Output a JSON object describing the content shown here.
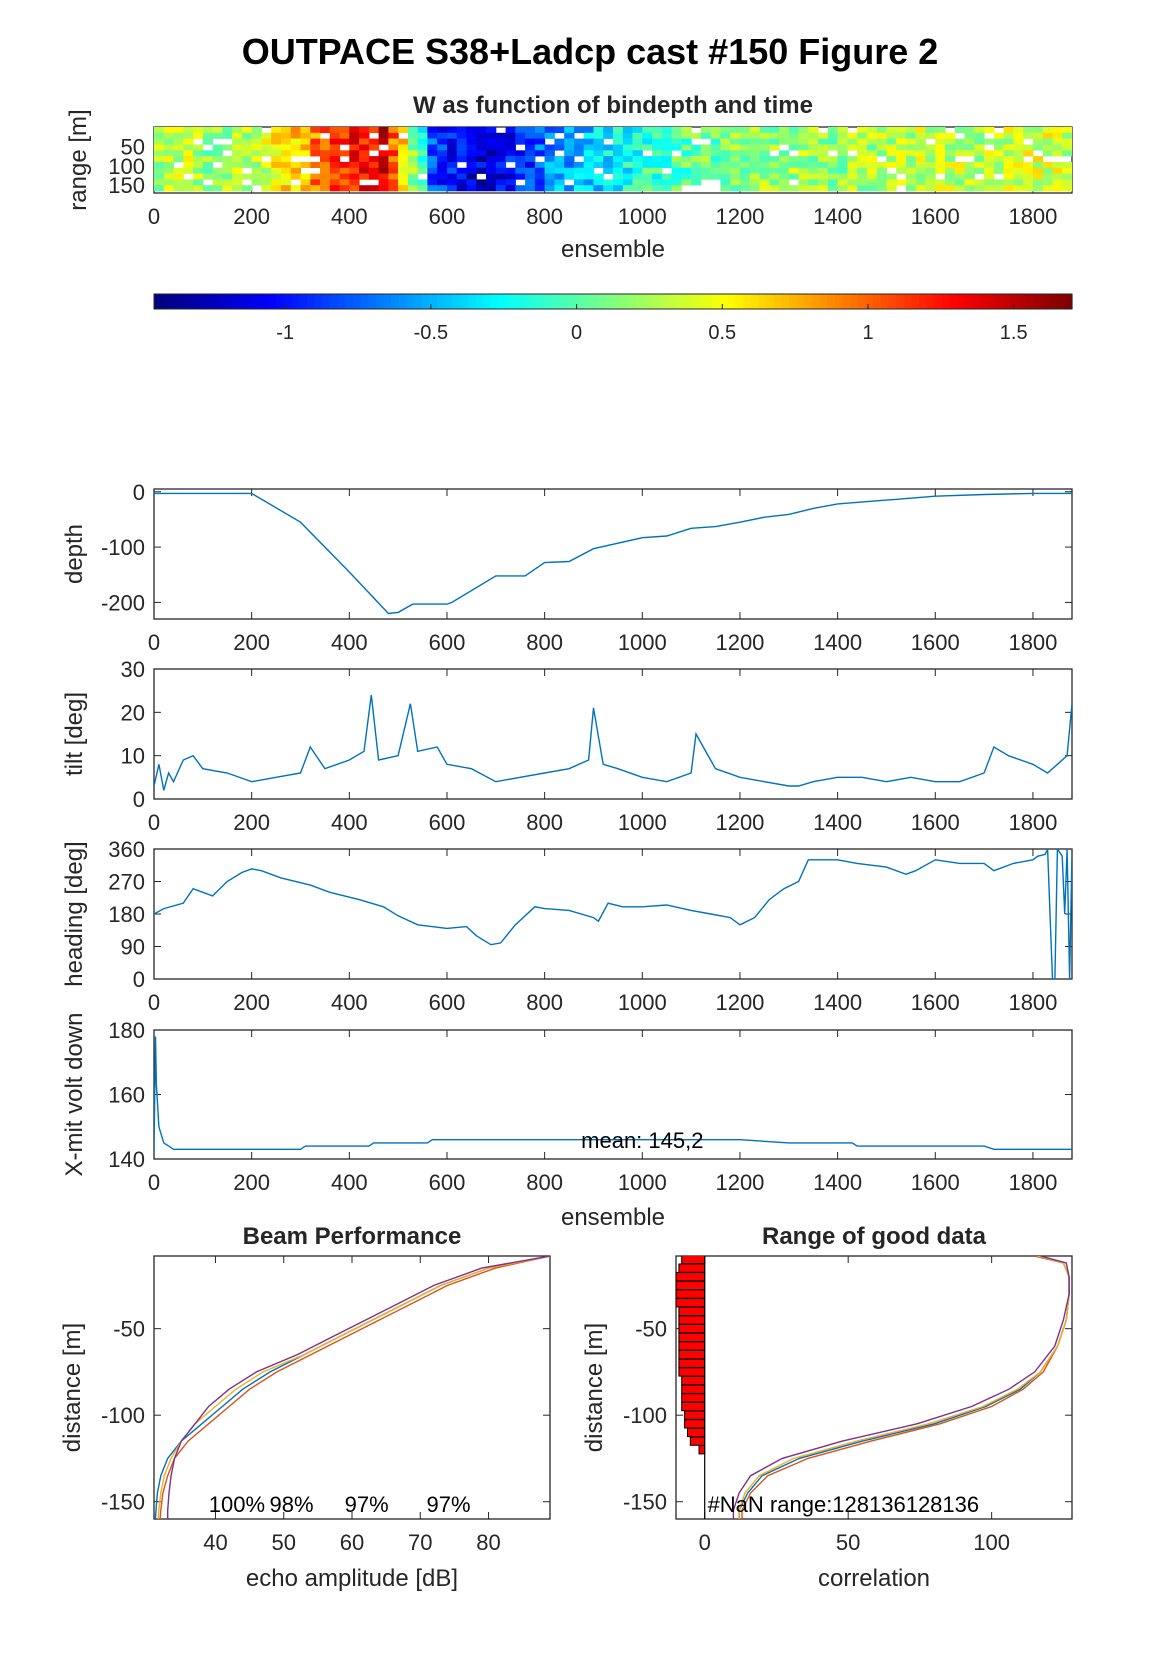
{
  "figure": {
    "title": "OUTPACE S38+Ladcp cast #150 Figure 2"
  },
  "colors": {
    "line": "#0072BD",
    "beam_series": [
      "#0072BD",
      "#D95319",
      "#EDB120",
      "#7E2F8E"
    ],
    "nan_bar": "#FF0000",
    "axis": "#262626"
  },
  "chart_data": [
    {
      "id": "w_image",
      "type": "heatmap",
      "title": "W as function of bindepth and time",
      "xlabel": "ensemble",
      "ylabel": "range [m]",
      "xlim": [
        0,
        1880
      ],
      "ylim": [
        0,
        170
      ],
      "y_reversed": true,
      "xticks": [
        0,
        200,
        400,
        600,
        800,
        1000,
        1200,
        1400,
        1600,
        1800
      ],
      "yticks": [
        50,
        100,
        150
      ],
      "colormap": "jet",
      "clim": [
        -1.45,
        1.7
      ],
      "colorbar_ticks": [
        -1,
        -0.5,
        0,
        0.5,
        1,
        1.5
      ],
      "colorbar_ticklabels": [
        "-1",
        "-0.5",
        "0",
        "0.5",
        "1",
        "1.5"
      ],
      "column_width_ensembles": 20,
      "bin_edges": [
        0,
        15,
        30,
        45,
        60,
        75,
        90,
        105,
        120,
        135,
        150,
        165
      ],
      "mean_w_by_ensemble": {
        "x": [
          0,
          60,
          100,
          200,
          260,
          300,
          340,
          380,
          420,
          460,
          500,
          540,
          560,
          600,
          640,
          700,
          760,
          800,
          900,
          1000,
          1100,
          1200,
          1300,
          1400,
          1500,
          1600,
          1700,
          1800,
          1880
        ],
        "values": [
          0.25,
          0.35,
          0.2,
          0.3,
          0.6,
          0.75,
          1.1,
          1.2,
          1.3,
          1.4,
          0.6,
          -0.2,
          -0.8,
          -1.0,
          -1.2,
          -1.1,
          -0.9,
          -0.6,
          -0.4,
          -0.1,
          0.05,
          0.15,
          0.25,
          0.2,
          0.3,
          0.35,
          0.3,
          0.4,
          0.35
        ]
      }
    },
    {
      "id": "depth",
      "type": "line",
      "xlabel": "",
      "ylabel": "depth",
      "xlim": [
        0,
        1880
      ],
      "ylim": [
        -230,
        5
      ],
      "xticks": [
        0,
        200,
        400,
        600,
        800,
        1000,
        1200,
        1400,
        1600,
        1800
      ],
      "yticks": [
        0,
        -100,
        -200
      ],
      "x": [
        0,
        200,
        300,
        400,
        480,
        500,
        530,
        600,
        610,
        700,
        760,
        800,
        850,
        900,
        1000,
        1050,
        1100,
        1150,
        1200,
        1250,
        1300,
        1350,
        1400,
        1500,
        1600,
        1700,
        1800,
        1880
      ],
      "y": [
        -3,
        -3,
        -55,
        -145,
        -220,
        -218,
        -203,
        -203,
        -200,
        -152,
        -152,
        -128,
        -126,
        -103,
        -83,
        -80,
        -66,
        -63,
        -55,
        -46,
        -41,
        -30,
        -22,
        -15,
        -8,
        -5,
        -3,
        -3
      ]
    },
    {
      "id": "tilt",
      "type": "line",
      "xlabel": "",
      "ylabel": "tilt [deg]",
      "xlim": [
        0,
        1880
      ],
      "ylim": [
        0,
        30
      ],
      "xticks": [
        0,
        200,
        400,
        600,
        800,
        1000,
        1200,
        1400,
        1600,
        1800
      ],
      "yticks": [
        0,
        10,
        20,
        30
      ],
      "x": [
        0,
        10,
        20,
        30,
        40,
        60,
        80,
        100,
        150,
        200,
        250,
        300,
        320,
        350,
        400,
        430,
        445,
        460,
        500,
        525,
        540,
        580,
        600,
        650,
        700,
        750,
        800,
        850,
        890,
        900,
        920,
        950,
        1000,
        1050,
        1100,
        1110,
        1150,
        1200,
        1250,
        1300,
        1320,
        1350,
        1400,
        1450,
        1500,
        1550,
        1600,
        1650,
        1700,
        1720,
        1750,
        1800,
        1830,
        1850,
        1870,
        1880
      ],
      "y": [
        3,
        8,
        2,
        6,
        4,
        9,
        10,
        7,
        6,
        4,
        5,
        6,
        12,
        7,
        9,
        11,
        24,
        9,
        10,
        22,
        11,
        12,
        8,
        7,
        4,
        5,
        6,
        7,
        9,
        21,
        8,
        7,
        5,
        4,
        6,
        15,
        7,
        5,
        4,
        3,
        3,
        4,
        5,
        5,
        4,
        5,
        4,
        4,
        6,
        12,
        10,
        8,
        6,
        8,
        10,
        22
      ]
    },
    {
      "id": "heading",
      "type": "line",
      "xlabel": "",
      "ylabel": "heading [deg]",
      "xlim": [
        0,
        1880
      ],
      "ylim": [
        0,
        360
      ],
      "xticks": [
        0,
        200,
        400,
        600,
        800,
        1000,
        1200,
        1400,
        1600,
        1800
      ],
      "yticks": [
        0,
        90,
        180,
        270,
        360
      ],
      "x": [
        0,
        20,
        60,
        80,
        120,
        150,
        180,
        200,
        220,
        260,
        320,
        360,
        420,
        470,
        500,
        540,
        600,
        640,
        660,
        690,
        710,
        740,
        780,
        800,
        850,
        900,
        910,
        930,
        960,
        1000,
        1050,
        1100,
        1140,
        1180,
        1200,
        1230,
        1260,
        1290,
        1320,
        1340,
        1400,
        1440,
        1500,
        1540,
        1560,
        1600,
        1650,
        1700,
        1720,
        1760,
        1800,
        1810,
        1825,
        1830,
        1835,
        1840,
        1845,
        1850,
        1860,
        1865,
        1870,
        1875,
        1880
      ],
      "y": [
        180,
        195,
        210,
        250,
        230,
        270,
        295,
        305,
        300,
        280,
        260,
        240,
        220,
        200,
        175,
        150,
        140,
        145,
        120,
        95,
        100,
        150,
        200,
        195,
        190,
        170,
        160,
        210,
        200,
        200,
        205,
        190,
        180,
        170,
        150,
        170,
        220,
        250,
        270,
        330,
        330,
        320,
        310,
        290,
        300,
        330,
        320,
        320,
        300,
        320,
        330,
        340,
        345,
        360,
        180,
        0,
        0,
        360,
        340,
        180,
        360,
        0,
        350
      ]
    },
    {
      "id": "xmit_volt",
      "type": "line",
      "xlabel": "ensemble",
      "ylabel": "X-mit volt down",
      "xlim": [
        0,
        1880
      ],
      "ylim": [
        140,
        180
      ],
      "xticks": [
        0,
        200,
        400,
        600,
        800,
        1000,
        1200,
        1400,
        1600,
        1800
      ],
      "yticks": [
        140,
        160,
        180
      ],
      "annotation": "mean: 145,2",
      "x": [
        0,
        3,
        5,
        10,
        20,
        30,
        40,
        100,
        300,
        310,
        440,
        450,
        560,
        570,
        680,
        700,
        900,
        1000,
        1200,
        1300,
        1400,
        1430,
        1440,
        1450,
        1600,
        1700,
        1720,
        1760,
        1770,
        1880
      ],
      "y": [
        143,
        178,
        163,
        150,
        145,
        144,
        143,
        143,
        143,
        144,
        144,
        145,
        145,
        146,
        146,
        146,
        146,
        146,
        146,
        145,
        145,
        145,
        144,
        144,
        144,
        144,
        143,
        143,
        143,
        143
      ]
    },
    {
      "id": "beam_performance",
      "type": "line",
      "title": "Beam Performance",
      "xlabel": "echo amplitude [dB]",
      "ylabel": "distance [m]",
      "xlim": [
        31,
        89
      ],
      "ylim": [
        -160,
        -8
      ],
      "xticks": [
        40,
        50,
        60,
        70,
        80
      ],
      "yticks": [
        -50,
        -100,
        -150
      ],
      "annotations": [
        "100%",
        "98%",
        "97%",
        "97%"
      ],
      "series": [
        {
          "y": [
            -8,
            -15,
            -25,
            -35,
            -45,
            -55,
            -65,
            -75,
            -85,
            -95,
            -105,
            -115,
            -125,
            -135,
            -145,
            -155,
            -160
          ],
          "x": [
            89,
            80,
            73,
            68,
            63,
            58,
            53,
            48,
            44,
            41,
            38,
            35,
            33,
            32,
            31.5,
            31.3,
            31.2
          ]
        },
        {
          "y": [
            -8,
            -15,
            -25,
            -35,
            -45,
            -55,
            -65,
            -75,
            -85,
            -95,
            -105,
            -115,
            -125,
            -135,
            -145,
            -155,
            -160
          ],
          "x": [
            89,
            81,
            74,
            69,
            64,
            59,
            54,
            49,
            45,
            42,
            39,
            36,
            34,
            33,
            32.3,
            32,
            31.9
          ]
        },
        {
          "y": [
            -8,
            -15,
            -25,
            -35,
            -45,
            -55,
            -65,
            -75,
            -85,
            -95,
            -105,
            -115,
            -125,
            -135,
            -145,
            -155,
            -160
          ],
          "x": [
            89,
            80,
            73,
            68,
            63,
            58,
            53,
            47,
            43,
            40,
            37,
            35,
            33.5,
            32.5,
            32,
            31.7,
            31.6
          ]
        },
        {
          "y": [
            -8,
            -15,
            -25,
            -35,
            -45,
            -55,
            -65,
            -75,
            -85,
            -95,
            -105,
            -115,
            -125,
            -135,
            -145,
            -155,
            -160
          ],
          "x": [
            89,
            79,
            72,
            67,
            62,
            57,
            52,
            46,
            42,
            39,
            37,
            35,
            34,
            33.5,
            33.2,
            33,
            33
          ]
        }
      ]
    },
    {
      "id": "range_good_data",
      "type": "line",
      "title": "Range of good data",
      "xlabel": "correlation",
      "ylabel": "distance [m]",
      "xlim": [
        -10,
        128
      ],
      "ylim": [
        -160,
        -8
      ],
      "xticks": [
        0,
        50,
        100
      ],
      "yticks": [
        -50,
        -100,
        -150
      ],
      "annotation": "#NaN range:128136128136",
      "nan_bars": {
        "y": [
          -10,
          -15,
          -20,
          -25,
          -30,
          -35,
          -40,
          -45,
          -50,
          -55,
          -60,
          -65,
          -70,
          -75,
          -80,
          -85,
          -90,
          -95,
          -100,
          -105,
          -110,
          -115,
          -120
        ],
        "x": [
          -8,
          -9,
          -10,
          -10,
          -10,
          -10,
          -9,
          -9,
          -9,
          -9,
          -9,
          -9,
          -9,
          -9,
          -8,
          -8,
          -8,
          -8,
          -7,
          -7,
          -6,
          -5,
          -2
        ]
      },
      "series": [
        {
          "y": [
            -8,
            -12,
            -20,
            -30,
            -45,
            -60,
            -75,
            -85,
            -95,
            -105,
            -115,
            -125,
            -135,
            -145,
            -155,
            -160
          ],
          "x": [
            115,
            125,
            127,
            127,
            126,
            123,
            117,
            110,
            98,
            80,
            55,
            33,
            20,
            15,
            12,
            12
          ]
        },
        {
          "y": [
            -8,
            -12,
            -20,
            -30,
            -45,
            -60,
            -75,
            -85,
            -95,
            -105,
            -115,
            -125,
            -135,
            -145,
            -155,
            -160
          ],
          "x": [
            115,
            125,
            127,
            127,
            126,
            123,
            118,
            111,
            100,
            82,
            58,
            36,
            22,
            16,
            13,
            13
          ]
        },
        {
          "y": [
            -8,
            -12,
            -20,
            -30,
            -45,
            -60,
            -75,
            -85,
            -95,
            -105,
            -115,
            -125,
            -135,
            -145,
            -155,
            -160
          ],
          "x": [
            116,
            125,
            127,
            127,
            126,
            123,
            117,
            109,
            97,
            78,
            53,
            31,
            19,
            14,
            12,
            12
          ]
        },
        {
          "y": [
            -8,
            -12,
            -20,
            -30,
            -45,
            -60,
            -75,
            -85,
            -95,
            -105,
            -115,
            -125,
            -135,
            -145,
            -155,
            -160
          ],
          "x": [
            117,
            126,
            127,
            127,
            125,
            122,
            115,
            106,
            93,
            74,
            48,
            27,
            16,
            12,
            10,
            10
          ]
        }
      ]
    }
  ]
}
